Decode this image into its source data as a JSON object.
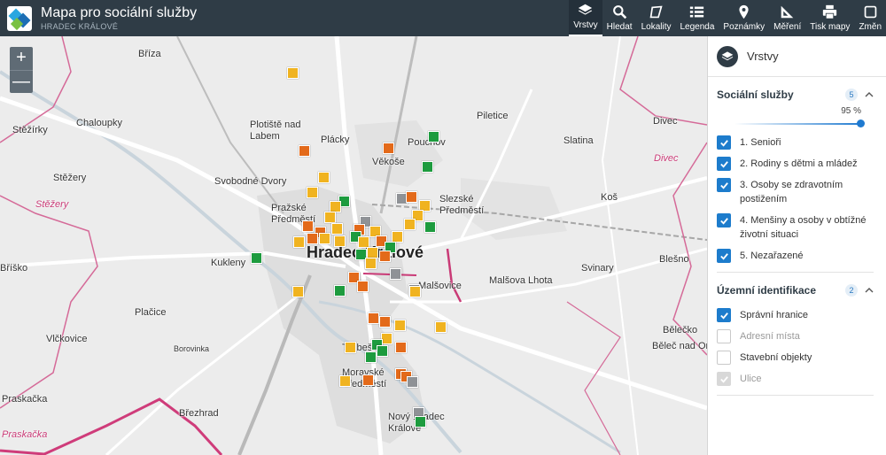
{
  "app": {
    "title": "Mapa pro sociální služby",
    "subtitle": "HRADEC KRÁLOVÉ"
  },
  "toolbar": [
    {
      "label": "Vrstvy",
      "icon": "layers-icon",
      "active": true
    },
    {
      "label": "Hledat",
      "icon": "search-icon",
      "active": false
    },
    {
      "label": "Lokality",
      "icon": "locality-icon",
      "active": false
    },
    {
      "label": "Legenda",
      "icon": "legend-icon",
      "active": false
    },
    {
      "label": "Poznámky",
      "icon": "pin-icon",
      "active": false
    },
    {
      "label": "Měření",
      "icon": "measure-icon",
      "active": false
    },
    {
      "label": "Tisk mapy",
      "icon": "print-icon",
      "active": false
    },
    {
      "label": "Změn",
      "icon": "change-icon",
      "active": false
    }
  ],
  "zoom": {
    "in": "+",
    "out": "—"
  },
  "panel": {
    "title": "Vrstvy",
    "social": {
      "title": "Sociální služby",
      "count": "5",
      "opacity": "95 %",
      "items": [
        {
          "label": "1. Senioři",
          "state": "on"
        },
        {
          "label": "2. Rodiny s dětmi a mládež",
          "state": "on"
        },
        {
          "label": "3. Osoby se zdravotním postižením",
          "state": "on"
        },
        {
          "label": "4. Menšiny a osoby v obtížné životní situaci",
          "state": "on"
        },
        {
          "label": "5. Nezařazené",
          "state": "on"
        }
      ]
    },
    "territory": {
      "title": "Územní identifikace",
      "count": "2",
      "items": [
        {
          "label": "Správní hranice",
          "state": "on"
        },
        {
          "label": "Adresní místa",
          "state": "off-dim"
        },
        {
          "label": "Stavební objekty",
          "state": "off"
        },
        {
          "label": "Ulice",
          "state": "disabled-dim"
        }
      ]
    }
  },
  "map_labels": [
    "Bříza",
    "Chaloupky",
    "Plotiště nad Labem",
    "Plácky",
    "Pouchov",
    "Piletice",
    "Divec",
    "Stěžírky",
    "Věkoše",
    "Slatina",
    "Divec",
    "Stěžery",
    "Svobodné Dvory",
    "Slezské Předměstí",
    "Koš",
    "Stěžery",
    "Pražské Předměstí",
    "Blešno",
    "Bříško",
    "Kukleny",
    "Hradec Králové",
    "Svinary",
    "Malšovice",
    "Malšova Lhota",
    "Plačice",
    "Vlčkovice",
    "Třebeš",
    "Bělečko",
    "Běleč nad Orl",
    "Borovinka",
    "Moravské Předměstí",
    "Praskačka",
    "Březhrad",
    "Nový Hradec Králové",
    "Praskačka"
  ]
}
